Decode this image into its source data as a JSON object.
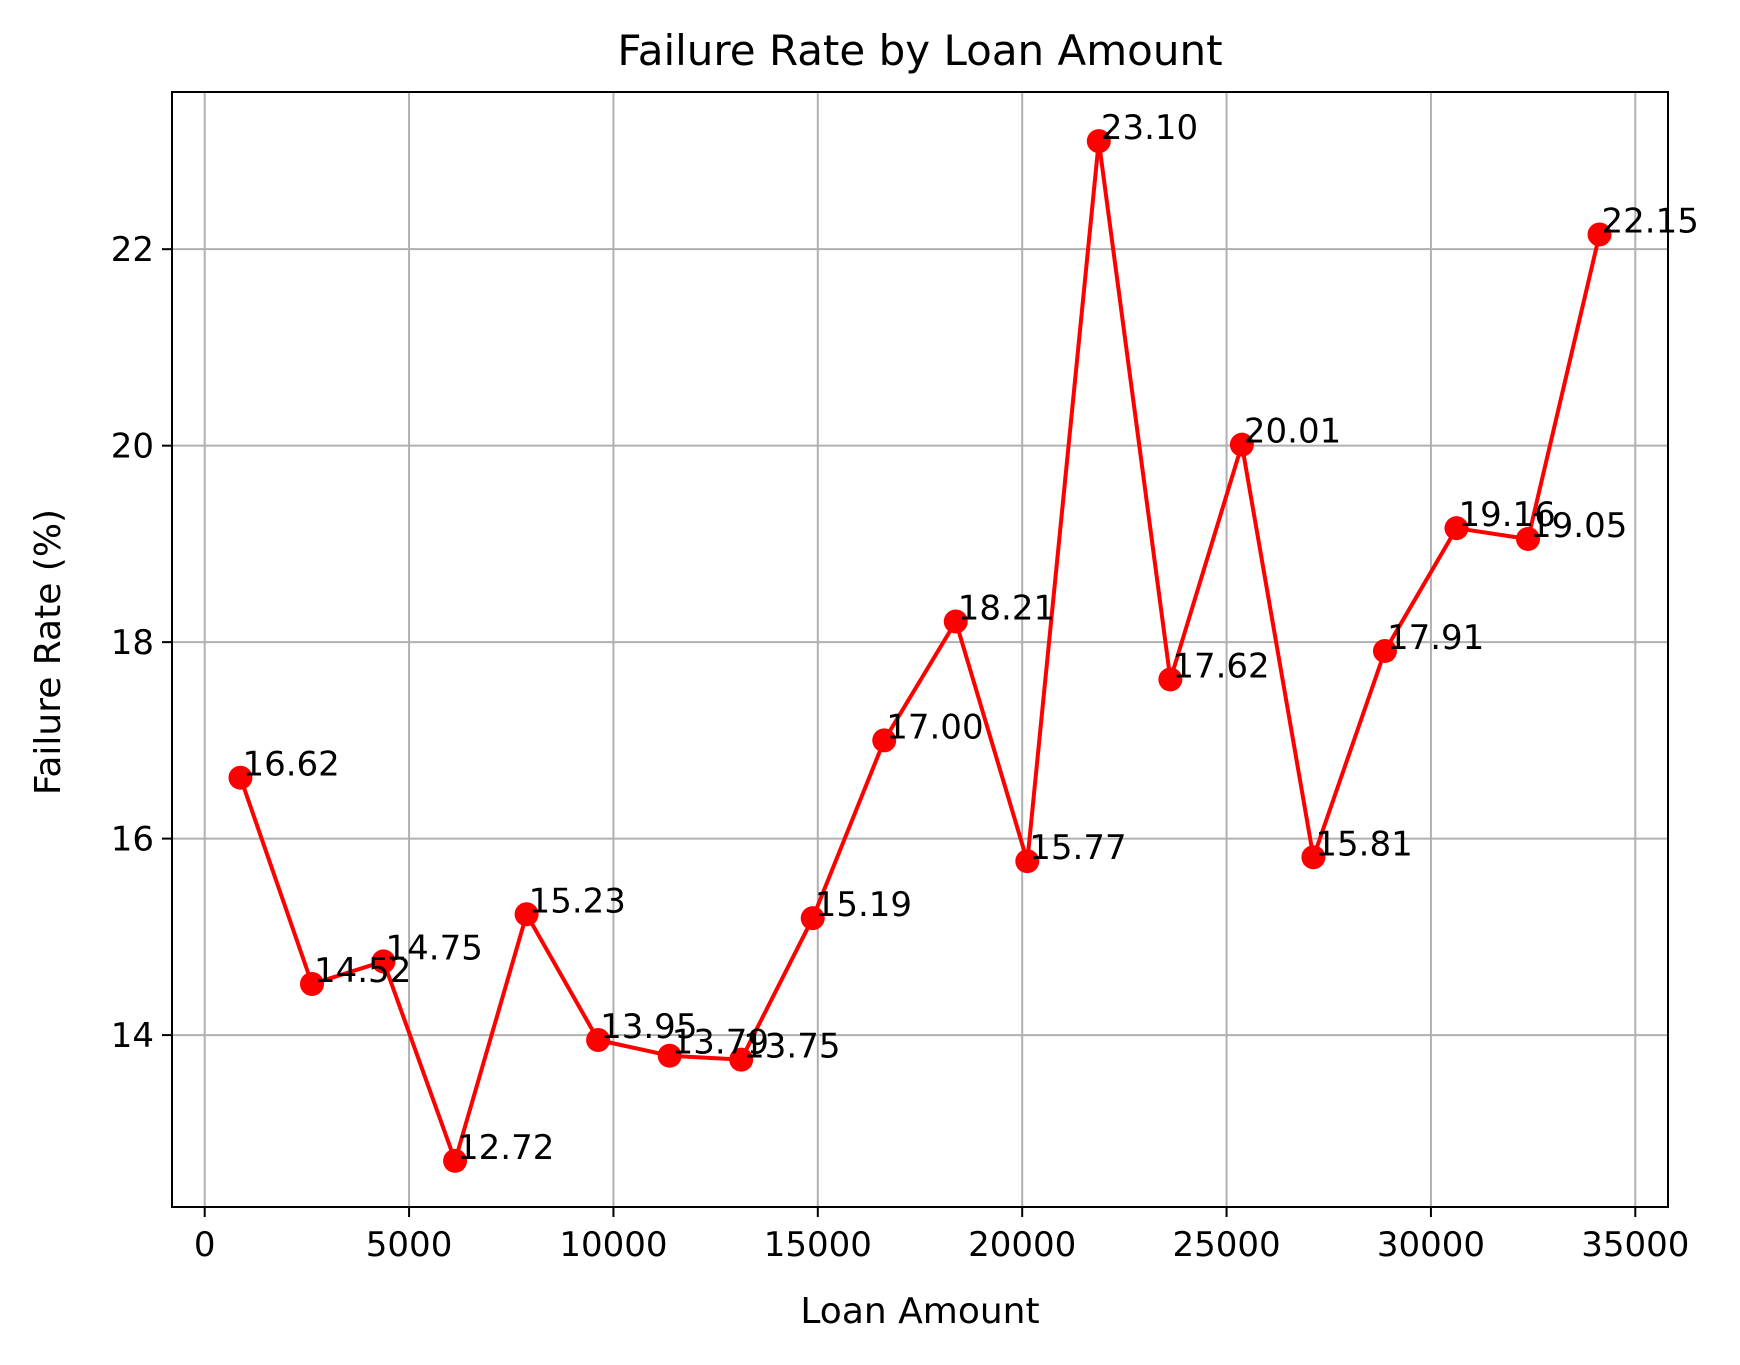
{
  "chart_data": {
    "type": "line",
    "title": "Failure Rate by Loan Amount",
    "xlabel": "Loan Amount",
    "ylabel": "Failure Rate (%)",
    "xlim": [
      -800,
      35800
    ],
    "ylim": [
      12.25,
      23.6
    ],
    "xticks": [
      0,
      5000,
      10000,
      15000,
      20000,
      25000,
      30000,
      35000
    ],
    "yticks": [
      14,
      16,
      18,
      20,
      22
    ],
    "grid": true,
    "legend": "none",
    "series": [
      {
        "color": "#ff0000",
        "marker": "circle",
        "x": [
          875,
          2625,
          4375,
          6125,
          7875,
          9625,
          11375,
          13125,
          14875,
          16625,
          18375,
          20125,
          21875,
          23625,
          25375,
          27125,
          28875,
          30625,
          32375,
          34125
        ],
        "y": [
          16.62,
          14.52,
          14.75,
          12.72,
          15.23,
          13.95,
          13.79,
          13.75,
          15.19,
          17.0,
          18.21,
          15.77,
          23.1,
          17.62,
          20.01,
          15.81,
          17.91,
          19.16,
          19.05,
          22.15
        ],
        "labels": [
          "16.62",
          "14.52",
          "14.75",
          "12.72",
          "15.23",
          "13.95",
          "13.79",
          "13.75",
          "15.19",
          "17.00",
          "18.21",
          "15.77",
          "23.10",
          "17.62",
          "20.01",
          "15.81",
          "17.91",
          "19.16",
          "19.05",
          "22.15"
        ]
      }
    ]
  }
}
